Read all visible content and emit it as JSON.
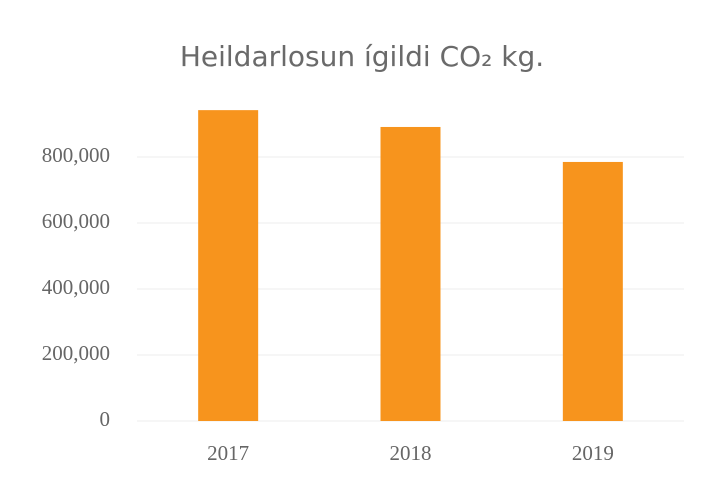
{
  "chart_data": {
    "type": "bar",
    "title": "Heildarlosun ígildi CO₂ kg.",
    "categories": [
      "2017",
      "2018",
      "2019"
    ],
    "values": [
      942000,
      891000,
      785000
    ],
    "color": "#f7941d",
    "ylim": [
      0,
      1000000
    ],
    "yticks": [
      0,
      {
        "value": 200000,
        "label": "200,000"
      },
      {
        "value": 400000,
        "label": "400,000"
      },
      {
        "value": 600000,
        "label": "600,000"
      },
      {
        "value": 800000,
        "label": "800,000"
      }
    ],
    "grid": true
  }
}
